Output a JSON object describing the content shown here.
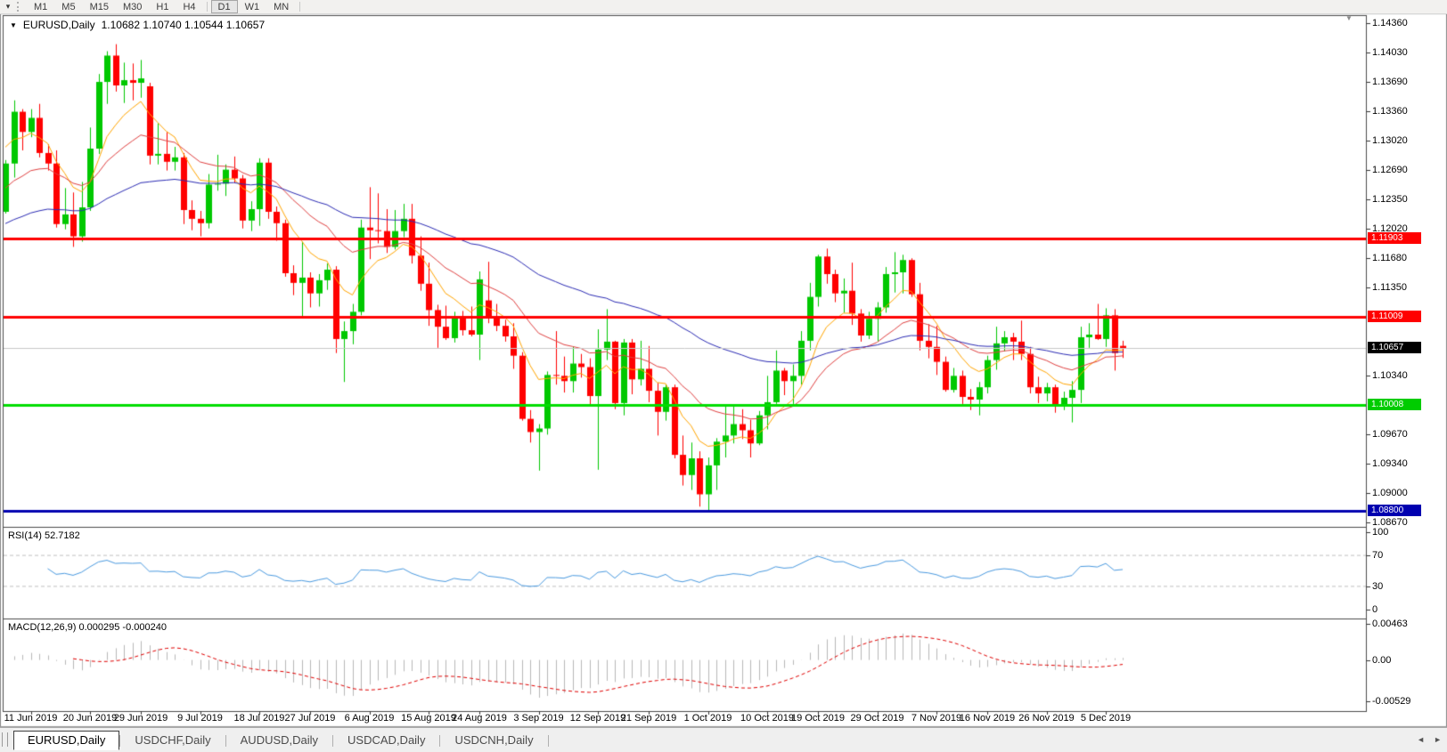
{
  "toolbar": {
    "dropdown_icon": "▾",
    "groups": [
      [
        "M1",
        "M5",
        "M15",
        "M30",
        "H1",
        "H4"
      ],
      [
        "D1",
        "W1",
        "MN"
      ]
    ],
    "active": "D1"
  },
  "chart": {
    "title_symbol": "EURUSD,Daily",
    "title_values": "1.10682 1.10740 1.10544 1.10657",
    "rsi_label": "RSI(14) 52.7182",
    "macd_label": "MACD(12,26,9) 0.000295 -0.000240"
  },
  "tabs": {
    "items": [
      {
        "label": "EURUSD,Daily",
        "active": true
      },
      {
        "label": "USDCHF,Daily",
        "active": false
      },
      {
        "label": "AUDUSD,Daily",
        "active": false
      },
      {
        "label": "USDCAD,Daily",
        "active": false
      },
      {
        "label": "USDCNH,Daily",
        "active": false
      }
    ],
    "scroll_left_icon": "◄",
    "scroll_right_icon": "►"
  },
  "chart_data": {
    "type": "candlestick",
    "symbol": "EURUSD",
    "timeframe": "Daily",
    "current_bar": {
      "open": "1.10682",
      "high": "1.10740",
      "low": "1.10544",
      "close": "1.10657"
    },
    "price_axis": {
      "ticks": [
        "1.14360",
        "1.14030",
        "1.13690",
        "1.13360",
        "1.13020",
        "1.12690",
        "1.12350",
        "1.12020",
        "1.11680",
        "1.11350",
        "1.10340",
        "1.09670",
        "1.09340",
        "1.09000",
        "1.08670"
      ],
      "max": 1.1436,
      "min": 1.0867
    },
    "price_flags": [
      {
        "label": "1.11903",
        "v": 1.11903,
        "bg": "#FF0000"
      },
      {
        "label": "1.11009",
        "v": 1.11009,
        "bg": "#FF0000"
      },
      {
        "label": "1.10657",
        "v": 1.10657,
        "bg": "#000000"
      },
      {
        "label": "1.10008",
        "v": 1.10008,
        "bg": "#00CC00"
      },
      {
        "label": "1.08800",
        "v": 1.088,
        "bg": "#0000B0"
      }
    ],
    "hlines": [
      {
        "v": 1.11903,
        "color": "#FF0000",
        "w": 3
      },
      {
        "v": 1.11009,
        "color": "#FF0000",
        "w": 3
      },
      {
        "v": 1.10657,
        "color": "#C8C8C8",
        "w": 1
      },
      {
        "v": 1.10008,
        "color": "#00DD00",
        "w": 3
      },
      {
        "v": 1.088,
        "color": "#0000B0",
        "w": 3
      }
    ],
    "colors": {
      "bull": "#00C800",
      "bear": "#FF0000"
    },
    "moving_averages": [
      {
        "period": 8,
        "seed": 1.13,
        "color": "#FFA500"
      },
      {
        "period": 20,
        "seed": 1.1245,
        "color": "#E04040"
      },
      {
        "period": 55,
        "seed": 1.1205,
        "color": "#2B2BB4"
      }
    ],
    "rsi": {
      "period": 14,
      "color": "#4A9AE0",
      "levels": [
        70,
        30
      ],
      "axis": [
        {
          "label": "100",
          "v": 100
        },
        {
          "label": "70",
          "v": 70
        },
        {
          "label": "30",
          "v": 30
        },
        {
          "label": "0",
          "v": 0
        }
      ],
      "last_value": 52.7182
    },
    "macd": {
      "fast": 12,
      "slow": 26,
      "signal": 9,
      "hist_color": "#B8B8B8",
      "signal_color": "#E00000",
      "axis": [
        {
          "label": "0.00463",
          "v": 0.00463
        },
        {
          "label": "0.00",
          "v": 0
        },
        {
          "label": "-0.00529",
          "v": -0.00529
        }
      ],
      "last_macd": 0.000295,
      "last_signal": -0.00024
    },
    "date_ticks": [
      {
        "i": 3,
        "label": "11 Jun 2019"
      },
      {
        "i": 10,
        "label": "20 Jun 2019"
      },
      {
        "i": 16,
        "label": "29 Jun 2019"
      },
      {
        "i": 23,
        "label": "9 Jul 2019"
      },
      {
        "i": 30,
        "label": "18 Jul 2019"
      },
      {
        "i": 36,
        "label": "27 Jul 2019"
      },
      {
        "i": 43,
        "label": "6 Aug 2019"
      },
      {
        "i": 50,
        "label": "15 Aug 2019"
      },
      {
        "i": 56,
        "label": "24 Aug 2019"
      },
      {
        "i": 63,
        "label": "3 Sep 2019"
      },
      {
        "i": 70,
        "label": "12 Sep 2019"
      },
      {
        "i": 76,
        "label": "21 Sep 2019"
      },
      {
        "i": 83,
        "label": "1 Oct 2019"
      },
      {
        "i": 90,
        "label": "10 Oct 2019"
      },
      {
        "i": 96,
        "label": "19 Oct 2019"
      },
      {
        "i": 103,
        "label": "29 Oct 2019"
      },
      {
        "i": 110,
        "label": "7 Nov 2019"
      },
      {
        "i": 116,
        "label": "16 Nov 2019"
      },
      {
        "i": 123,
        "label": "26 Nov 2019"
      },
      {
        "i": 130,
        "label": "5 Dec 2019"
      }
    ],
    "candles": [
      [
        1.1221,
        1.128,
        1.1219,
        1.1276
      ],
      [
        1.1276,
        1.1348,
        1.126,
        1.1335
      ],
      [
        1.1335,
        1.1338,
        1.1291,
        1.1312
      ],
      [
        1.1312,
        1.1338,
        1.1306,
        1.1328
      ],
      [
        1.1328,
        1.1344,
        1.1283,
        1.1288
      ],
      [
        1.1288,
        1.1298,
        1.1268,
        1.1276
      ],
      [
        1.1276,
        1.1291,
        1.1203,
        1.1207
      ],
      [
        1.1207,
        1.1248,
        1.1201,
        1.1218
      ],
      [
        1.1218,
        1.1243,
        1.1181,
        1.1193
      ],
      [
        1.1193,
        1.1255,
        1.1187,
        1.1226
      ],
      [
        1.1226,
        1.1317,
        1.1222,
        1.1293
      ],
      [
        1.1293,
        1.1378,
        1.1287,
        1.1369
      ],
      [
        1.1369,
        1.1404,
        1.1344,
        1.1399
      ],
      [
        1.1399,
        1.1412,
        1.1358,
        1.1365
      ],
      [
        1.1365,
        1.1391,
        1.1345,
        1.1371
      ],
      [
        1.1371,
        1.139,
        1.1348,
        1.1368
      ],
      [
        1.1368,
        1.1394,
        1.1351,
        1.1373
      ],
      [
        1.1364,
        1.1368,
        1.1275,
        1.1285
      ],
      [
        1.1285,
        1.1322,
        1.1275,
        1.1287
      ],
      [
        1.1287,
        1.1312,
        1.1268,
        1.1278
      ],
      [
        1.1278,
        1.1295,
        1.1268,
        1.1283
      ],
      [
        1.1283,
        1.1288,
        1.1207,
        1.1223
      ],
      [
        1.1223,
        1.1234,
        1.12,
        1.1213
      ],
      [
        1.1213,
        1.1222,
        1.1193,
        1.1208
      ],
      [
        1.1208,
        1.1264,
        1.1202,
        1.1252
      ],
      [
        1.1252,
        1.1286,
        1.1245,
        1.1253
      ],
      [
        1.1253,
        1.1275,
        1.1239,
        1.1269
      ],
      [
        1.1269,
        1.1284,
        1.1254,
        1.1259
      ],
      [
        1.1259,
        1.1263,
        1.1202,
        1.1211
      ],
      [
        1.1211,
        1.1233,
        1.1199,
        1.1224
      ],
      [
        1.1224,
        1.1282,
        1.1205,
        1.1277
      ],
      [
        1.1277,
        1.1282,
        1.1213,
        1.1221
      ],
      [
        1.1221,
        1.1227,
        1.1188,
        1.1208
      ],
      [
        1.1208,
        1.1212,
        1.1147,
        1.1151
      ],
      [
        1.1151,
        1.116,
        1.1126,
        1.114
      ],
      [
        1.114,
        1.1187,
        1.1101,
        1.1146
      ],
      [
        1.1146,
        1.1152,
        1.1112,
        1.1128
      ],
      [
        1.1128,
        1.115,
        1.1113,
        1.1143
      ],
      [
        1.1143,
        1.1162,
        1.1132,
        1.1155
      ],
      [
        1.1155,
        1.1159,
        1.106,
        1.1076
      ],
      [
        1.1076,
        1.1096,
        1.1027,
        1.1085
      ],
      [
        1.1085,
        1.1116,
        1.107,
        1.1107
      ],
      [
        1.1107,
        1.1212,
        1.1103,
        1.1203
      ],
      [
        1.1203,
        1.1249,
        1.1167,
        1.12
      ],
      [
        1.12,
        1.1242,
        1.1185,
        1.1199
      ],
      [
        1.1199,
        1.1224,
        1.1174,
        1.1181
      ],
      [
        1.1181,
        1.1223,
        1.1178,
        1.1199
      ],
      [
        1.1199,
        1.123,
        1.1192,
        1.1213
      ],
      [
        1.1213,
        1.123,
        1.1162,
        1.1171
      ],
      [
        1.1171,
        1.1193,
        1.1131,
        1.1139
      ],
      [
        1.1139,
        1.1163,
        1.1091,
        1.1109
      ],
      [
        1.1109,
        1.1115,
        1.1066,
        1.109
      ],
      [
        1.109,
        1.1114,
        1.1075,
        1.1077
      ],
      [
        1.1077,
        1.1107,
        1.1072,
        1.11
      ],
      [
        1.11,
        1.1108,
        1.108,
        1.1086
      ],
      [
        1.1086,
        1.1113,
        1.1079,
        1.1081
      ],
      [
        1.1081,
        1.1153,
        1.1052,
        1.1144
      ],
      [
        1.112,
        1.1164,
        1.1094,
        1.1101
      ],
      [
        1.1101,
        1.1116,
        1.1085,
        1.1091
      ],
      [
        1.1091,
        1.1098,
        1.1073,
        1.1079
      ],
      [
        1.1079,
        1.1094,
        1.1042,
        1.1057
      ],
      [
        1.1057,
        1.1061,
        1.0983,
        1.0985
      ],
      [
        1.0985,
        1.0995,
        1.0958,
        1.097
      ],
      [
        1.097,
        1.0979,
        1.0926,
        1.0974
      ],
      [
        1.0974,
        1.1039,
        1.0967,
        1.1035
      ],
      [
        1.1035,
        1.1085,
        1.1024,
        1.1034
      ],
      [
        1.1034,
        1.1056,
        1.1015,
        1.1028
      ],
      [
        1.1028,
        1.1067,
        1.1015,
        1.1048
      ],
      [
        1.1048,
        1.1059,
        1.1032,
        1.1044
      ],
      [
        1.1044,
        1.1054,
        1.0999,
        1.1011
      ],
      [
        1.1011,
        1.1087,
        1.0927,
        1.1064
      ],
      [
        1.1064,
        1.111,
        1.1052,
        1.1073
      ],
      [
        1.1073,
        1.1074,
        1.0996,
        1.1003
      ],
      [
        1.1003,
        1.1076,
        1.0989,
        1.1072
      ],
      [
        1.1072,
        1.1076,
        1.1013,
        1.103
      ],
      [
        1.103,
        1.1074,
        1.1023,
        1.1042
      ],
      [
        1.1042,
        1.1068,
        1.1004,
        1.1017
      ],
      [
        1.1017,
        1.1026,
        1.0966,
        1.0993
      ],
      [
        1.0993,
        1.1024,
        1.0983,
        1.1021
      ],
      [
        1.1021,
        1.1024,
        1.094,
        1.0944
      ],
      [
        1.0944,
        1.0966,
        1.0909,
        1.0921
      ],
      [
        1.0921,
        1.0958,
        1.0904,
        1.094
      ],
      [
        1.094,
        1.0948,
        1.0885,
        1.0899
      ],
      [
        1.0899,
        1.0941,
        1.0879,
        1.0932
      ],
      [
        1.0932,
        1.0963,
        1.0904,
        1.0959
      ],
      [
        1.0959,
        1.0999,
        1.0941,
        1.0966
      ],
      [
        1.0966,
        1.0999,
        1.0957,
        1.0979
      ],
      [
        1.0979,
        1.0996,
        1.0962,
        1.0972
      ],
      [
        1.0972,
        1.0984,
        1.0941,
        1.0957
      ],
      [
        1.0957,
        1.0994,
        1.0955,
        1.0989
      ],
      [
        1.0989,
        1.1034,
        1.0973,
        1.1004
      ],
      [
        1.1004,
        1.1063,
        1.1002,
        1.104
      ],
      [
        1.104,
        1.1043,
        1.1012,
        1.1028
      ],
      [
        1.1028,
        1.1047,
        1.1002,
        1.1034
      ],
      [
        1.1034,
        1.1085,
        1.1024,
        1.1074
      ],
      [
        1.1074,
        1.114,
        1.1063,
        1.1124
      ],
      [
        1.1124,
        1.1172,
        1.1113,
        1.117
      ],
      [
        1.117,
        1.1179,
        1.1139,
        1.115
      ],
      [
        1.115,
        1.1155,
        1.1118,
        1.1128
      ],
      [
        1.1128,
        1.1145,
        1.1106,
        1.1131
      ],
      [
        1.1131,
        1.1163,
        1.1092,
        1.1105
      ],
      [
        1.1105,
        1.111,
        1.1073,
        1.108
      ],
      [
        1.108,
        1.1107,
        1.1076,
        1.1099
      ],
      [
        1.1099,
        1.1118,
        1.1073,
        1.1112
      ],
      [
        1.1112,
        1.1158,
        1.1106,
        1.115
      ],
      [
        1.115,
        1.1175,
        1.1129,
        1.1152
      ],
      [
        1.1152,
        1.1172,
        1.1128,
        1.1166
      ],
      [
        1.1166,
        1.1168,
        1.1124,
        1.1127
      ],
      [
        1.1127,
        1.114,
        1.1063,
        1.1074
      ],
      [
        1.1074,
        1.1093,
        1.1054,
        1.1067
      ],
      [
        1.1067,
        1.1091,
        1.1035,
        1.105
      ],
      [
        1.105,
        1.1056,
        1.1016,
        1.1018
      ],
      [
        1.1018,
        1.1043,
        1.1015,
        1.1034
      ],
      [
        1.1034,
        1.104,
        1.1002,
        1.101
      ],
      [
        1.101,
        1.1019,
        1.0995,
        1.1007
      ],
      [
        1.1007,
        1.1027,
        1.0989,
        1.1021
      ],
      [
        1.1021,
        1.1057,
        1.1014,
        1.1052
      ],
      [
        1.1052,
        1.109,
        1.1041,
        1.1071
      ],
      [
        1.1071,
        1.1085,
        1.1062,
        1.1078
      ],
      [
        1.1078,
        1.1083,
        1.1052,
        1.1073
      ],
      [
        1.1073,
        1.1097,
        1.1052,
        1.1059
      ],
      [
        1.1059,
        1.1067,
        1.1014,
        1.1021
      ],
      [
        1.1021,
        1.1033,
        1.1003,
        1.1014
      ],
      [
        1.1014,
        1.1026,
        1.1005,
        1.1021
      ],
      [
        1.1021,
        1.1024,
        1.0992,
        1.1001
      ],
      [
        1.1001,
        1.1016,
        1.0995,
        1.1009
      ],
      [
        1.1009,
        1.1028,
        1.0981,
        1.1018
      ],
      [
        1.1018,
        1.109,
        1.1003,
        1.1078
      ],
      [
        1.1078,
        1.1094,
        1.1066,
        1.1081
      ],
      [
        1.1081,
        1.1116,
        1.1075,
        1.1076
      ],
      [
        1.1076,
        1.1111,
        1.1067,
        1.1103
      ],
      [
        1.1103,
        1.111,
        1.104,
        1.106
      ],
      [
        1.10682,
        1.1074,
        1.10544,
        1.10657
      ]
    ]
  }
}
